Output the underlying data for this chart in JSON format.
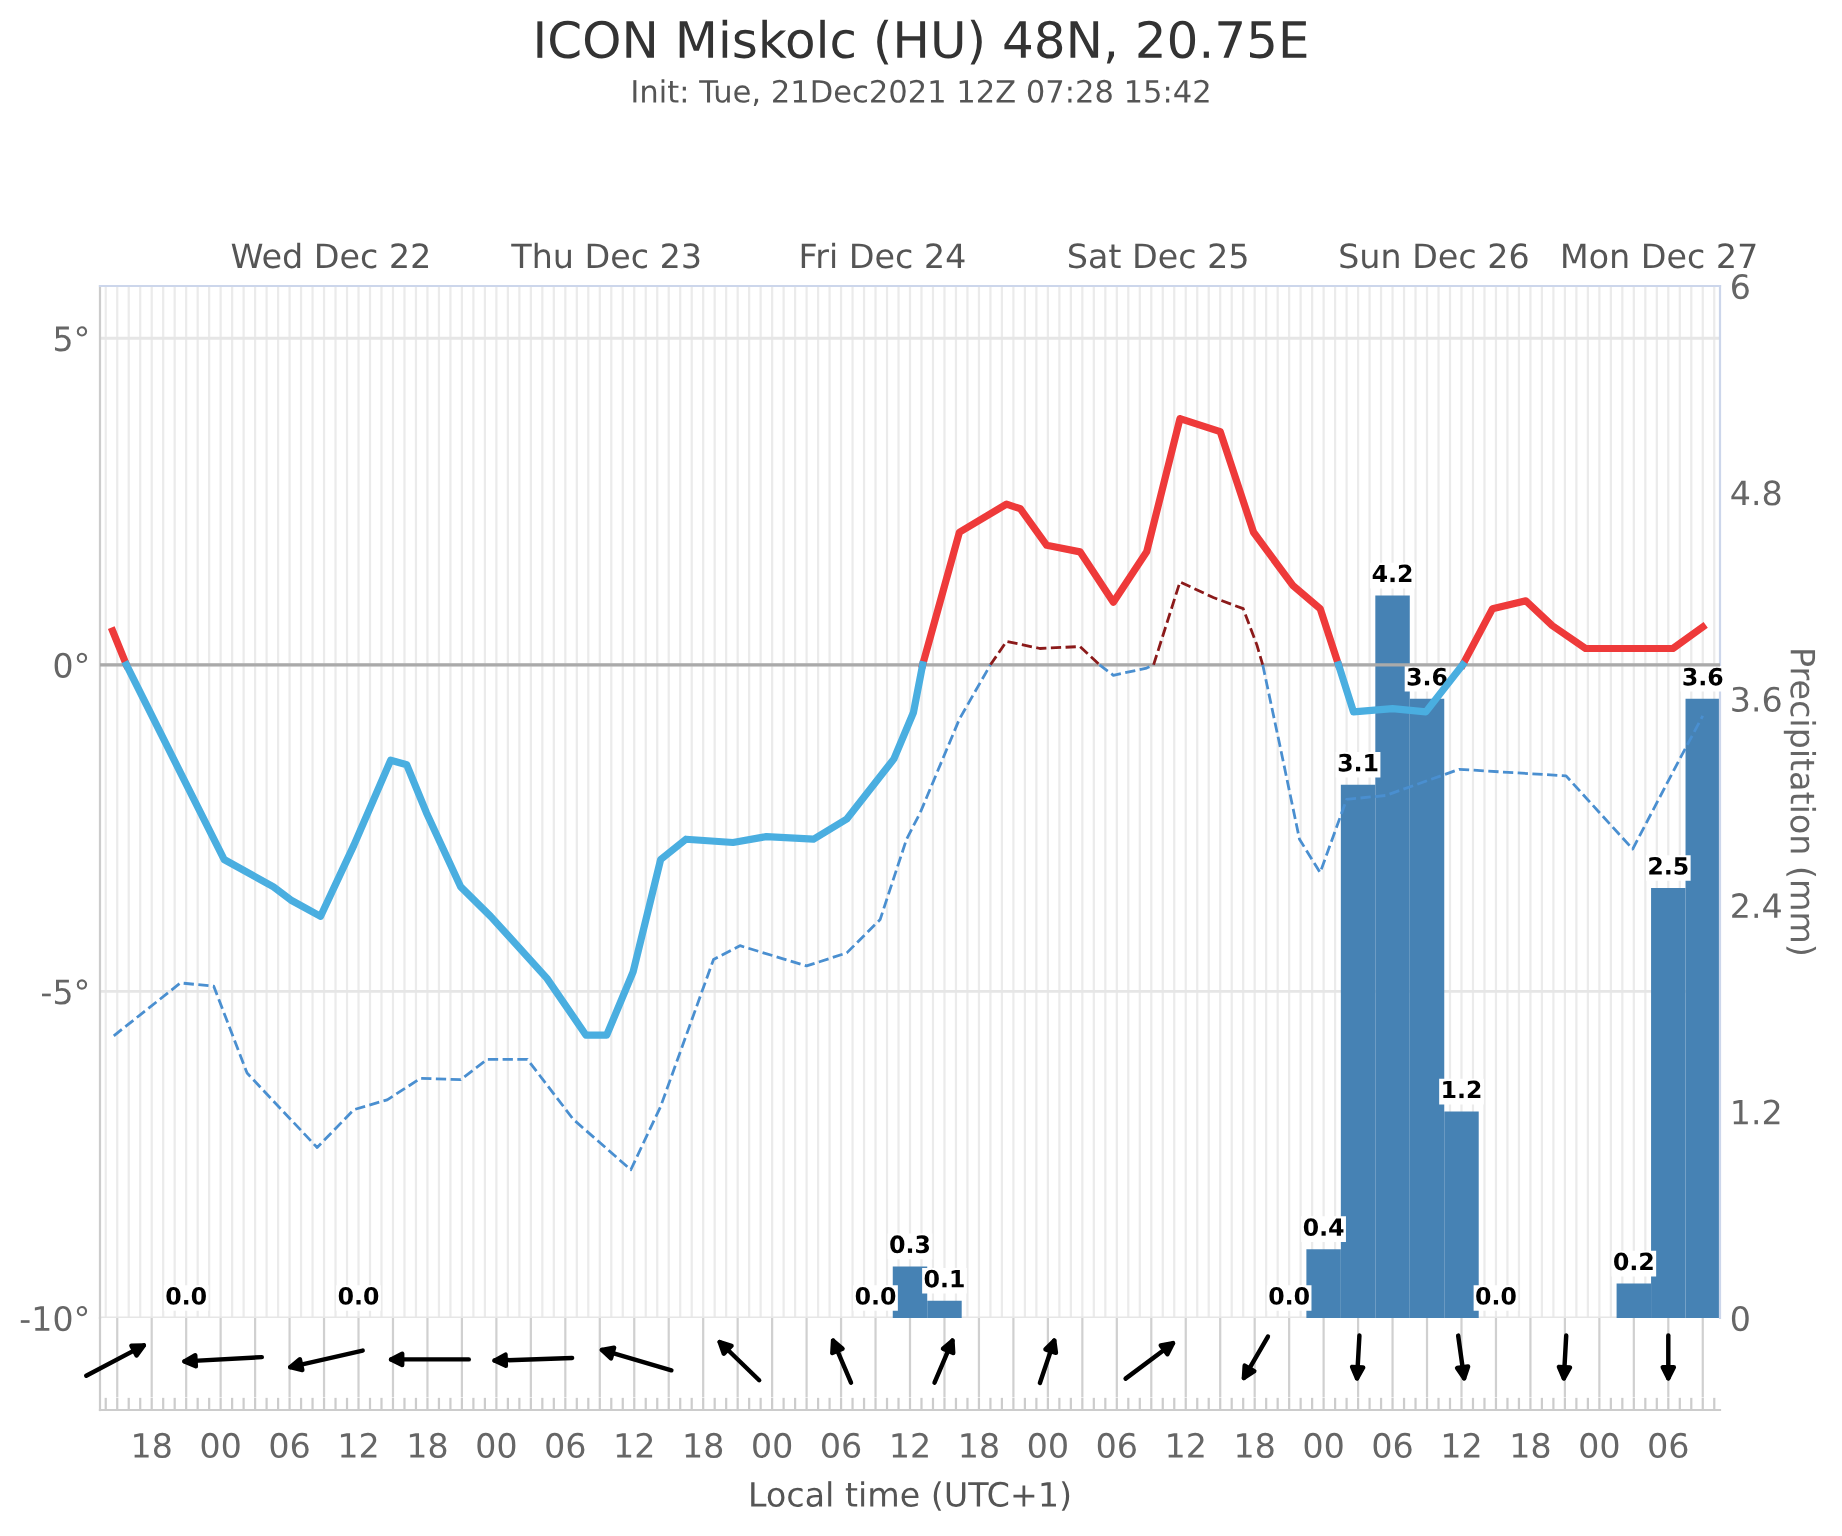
{
  "chart_data": {
    "type": "line",
    "title": "ICON Miskolc (HU) 48N, 20.75E",
    "subtitle": "Init: Tue, 21Dec2021 12Z 07:28 15:42",
    "xlabel": "Local time (UTC+1)",
    "y2label": "Precipitation (mm)",
    "x": [
      "2021-12-21T14:36",
      "2021-12-21T15:48",
      "2021-12-21T20:30",
      "2021-12-22T00:18",
      "2021-12-22T04:36",
      "2021-12-22T06:06",
      "2021-12-22T08:42",
      "2021-12-22T11:36",
      "2021-12-22T14:48",
      "2021-12-22T16:12",
      "2021-12-22T17:54",
      "2021-12-22T20:54",
      "2021-12-22T23:30",
      "2021-12-23T04:24",
      "2021-12-23T07:48",
      "2021-12-23T09:36",
      "2021-12-23T11:54",
      "2021-12-23T14:18",
      "2021-12-23T16:30",
      "2021-12-23T20:36",
      "2021-12-23T23:30",
      "2021-12-24T03:36",
      "2021-12-24T06:30",
      "2021-12-24T10:36",
      "2021-12-24T12:18",
      "2021-12-24T13:06",
      "2021-12-24T16:18",
      "2021-12-24T20:24",
      "2021-12-24T21:36",
      "2021-12-24T23:54",
      "2021-12-25T02:48",
      "2021-12-25T05:42",
      "2021-12-25T08:36",
      "2021-12-25T11:30",
      "2021-12-25T15:00",
      "2021-12-25T17:54",
      "2021-12-25T21:18",
      "2021-12-25T23:42",
      "2021-12-26T01:18",
      "2021-12-26T02:36",
      "2021-12-26T06:00",
      "2021-12-26T08:54",
      "2021-12-26T12:06",
      "2021-12-26T14:42",
      "2021-12-26T17:36",
      "2021-12-26T19:54",
      "2021-12-26T22:48",
      "2021-12-27T06:24",
      "2021-12-27T09:00"
    ],
    "series": [
      {
        "color": "#ee3a3a",
        "values": [
          0.52,
          0,
          null,
          null,
          null,
          null,
          null,
          null,
          null,
          null,
          null,
          null,
          null,
          null,
          null,
          null,
          null,
          null,
          null,
          null,
          null,
          null,
          null,
          null,
          null,
          0,
          2.03,
          2.46,
          2.39,
          1.83,
          1.73,
          0.96,
          1.73,
          3.77,
          3.57,
          2.03,
          1.22,
          0.86,
          0,
          null,
          null,
          null,
          0,
          0.86,
          0.98,
          0.6,
          0.25,
          0.25,
          0.58
        ]
      },
      {
        "color": "#4aaee0",
        "values": [
          null,
          0,
          -1.65,
          -2.98,
          -3.4,
          -3.6,
          -3.85,
          -2.76,
          -1.46,
          -1.53,
          -2.26,
          -3.4,
          -3.85,
          -4.8,
          -5.67,
          -5.67,
          -4.7,
          -2.98,
          -2.67,
          -2.72,
          -2.63,
          -2.67,
          -2.36,
          -1.44,
          -0.73,
          0,
          null,
          null,
          null,
          null,
          null,
          null,
          null,
          null,
          null,
          null,
          null,
          null,
          0,
          -0.72,
          -0.67,
          -0.72,
          0,
          null,
          null,
          null,
          null,
          null,
          null
        ]
      },
      {
        "line_style": "dashed",
        "color": "#8b1a1a",
        "x": [
          "2021-12-24T19:00",
          "2021-12-24T20:24",
          "2021-12-24T23:18",
          "2021-12-25T02:48",
          "2021-12-25T04:30",
          "2021-12-25T05:42",
          "2021-12-25T08:36",
          "2021-12-25T09:12",
          "2021-12-25T11:30",
          "2021-12-25T14:24",
          "2021-12-25T17:00",
          "2021-12-25T18:12",
          "2021-12-25T18:42"
        ],
        "values": [
          0,
          0.36,
          0.25,
          0.28,
          0,
          null,
          null,
          0,
          1.27,
          1.03,
          0.86,
          0.3,
          0
        ]
      },
      {
        "line_style": "dashed",
        "color": "#4a8fd0",
        "x": [
          "2021-12-21T14:42",
          "2021-12-21T20:30",
          "2021-12-21T23:24",
          "2021-12-22T02:18",
          "2021-12-22T08:24",
          "2021-12-22T11:36",
          "2021-12-22T14:30",
          "2021-12-22T17:24",
          "2021-12-22T20:54",
          "2021-12-22T23:12",
          "2021-12-23T02:42",
          "2021-12-23T06:42",
          "2021-12-23T11:42",
          "2021-12-23T14:18",
          "2021-12-23T18:54",
          "2021-12-23T21:12",
          "2021-12-24T03:00",
          "2021-12-24T06:30",
          "2021-12-24T09:24",
          "2021-12-24T11:42",
          "2021-12-24T12:54",
          "2021-12-24T16:18",
          "2021-12-24T19:00",
          "2021-12-24T20:24",
          "2021-12-25T04:30",
          "2021-12-25T05:42",
          "2021-12-25T08:36",
          "2021-12-25T09:12",
          "2021-12-25T11:30",
          "2021-12-25T18:42",
          "2021-12-25T20:12",
          "2021-12-25T21:54",
          "2021-12-25T23:42",
          "2021-12-26T02:00",
          "2021-12-26T05:24",
          "2021-12-26T11:48",
          "2021-12-26T21:06",
          "2021-12-27T00:00",
          "2021-12-27T02:54",
          "2021-12-27T07:00",
          "2021-12-27T09:00"
        ],
        "values": [
          -5.68,
          -4.87,
          -4.92,
          -6.25,
          -7.39,
          -6.81,
          -6.66,
          -6.33,
          -6.35,
          -6.04,
          -6.04,
          -6.96,
          -7.73,
          -6.76,
          -4.51,
          -4.3,
          -4.61,
          -4.41,
          -3.9,
          -2.67,
          -2.26,
          -0.83,
          0,
          null,
          0,
          -0.16,
          -0.05,
          0,
          null,
          0,
          -1.24,
          -2.67,
          -3.18,
          -2.06,
          -2.0,
          -1.6,
          -1.7,
          -2.26,
          -2.82,
          -1.44,
          -0.78
        ]
      },
      {
        "type": "bar",
        "axis": "y2",
        "color": "#4682b4",
        "value_labels": [
          "0.0",
          "0.0",
          "0.0",
          "0.3",
          "0.1",
          "0.0",
          "0.4",
          "3.1",
          "4.2",
          "3.6",
          "1.2",
          "0.0",
          "0.2",
          "2.5",
          "3.6"
        ],
        "x": [
          "2021-12-21T21:00",
          "2021-12-22T12:00",
          "2021-12-24T09:00",
          "2021-12-24T12:00",
          "2021-12-24T15:00",
          "2021-12-25T21:00",
          "2021-12-26T00:00",
          "2021-12-26T03:00",
          "2021-12-26T06:00",
          "2021-12-26T09:00",
          "2021-12-26T12:00",
          "2021-12-26T15:00",
          "2021-12-27T03:00",
          "2021-12-27T06:00",
          "2021-12-27T09:00"
        ],
        "values": [
          0.0,
          0.0,
          0.0,
          0.3,
          0.1,
          0.0,
          0.4,
          3.1,
          4.2,
          3.6,
          1.2,
          0.0,
          0.2,
          2.5,
          3.6
        ]
      }
    ],
    "xlim": [
      "2021-12-21T13:30",
      "2021-12-27T10:30"
    ],
    "xticks": [
      {
        "value": "2021-12-21T18:00",
        "label": "18"
      },
      {
        "value": "2021-12-22T00:00",
        "label": "00"
      },
      {
        "value": "2021-12-22T06:00",
        "label": "06"
      },
      {
        "value": "2021-12-22T12:00",
        "label": "12"
      },
      {
        "value": "2021-12-22T18:00",
        "label": "18"
      },
      {
        "value": "2021-12-23T00:00",
        "label": "00"
      },
      {
        "value": "2021-12-23T06:00",
        "label": "06"
      },
      {
        "value": "2021-12-23T12:00",
        "label": "12"
      },
      {
        "value": "2021-12-23T18:00",
        "label": "18"
      },
      {
        "value": "2021-12-24T00:00",
        "label": "00"
      },
      {
        "value": "2021-12-24T06:00",
        "label": "06"
      },
      {
        "value": "2021-12-24T12:00",
        "label": "12"
      },
      {
        "value": "2021-12-24T18:00",
        "label": "18"
      },
      {
        "value": "2021-12-25T00:00",
        "label": "00"
      },
      {
        "value": "2021-12-25T06:00",
        "label": "06"
      },
      {
        "value": "2021-12-25T12:00",
        "label": "12"
      },
      {
        "value": "2021-12-25T18:00",
        "label": "18"
      },
      {
        "value": "2021-12-26T00:00",
        "label": "00"
      },
      {
        "value": "2021-12-26T06:00",
        "label": "06"
      },
      {
        "value": "2021-12-26T12:00",
        "label": "12"
      },
      {
        "value": "2021-12-26T18:00",
        "label": "18"
      },
      {
        "value": "2021-12-27T00:00",
        "label": "00"
      },
      {
        "value": "2021-12-27T06:00",
        "label": "06"
      }
    ],
    "x2lim": [
      "2021-12-21T13:30",
      "2021-12-27T10:30"
    ],
    "x2ticks": [
      {
        "value": "2021-12-22T09:36",
        "label": "Wed Dec 22"
      },
      {
        "value": "2021-12-23T09:36",
        "label": "Thu Dec 23"
      },
      {
        "value": "2021-12-24T09:36",
        "label": "Fri Dec 24"
      },
      {
        "value": "2021-12-25T09:36",
        "label": "Sat Dec 25"
      },
      {
        "value": "2021-12-26T09:36",
        "label": "Sun Dec 26"
      },
      {
        "value": "2021-12-27T05:12",
        "label": "Mon Dec 27"
      }
    ],
    "ylim": [
      -10,
      5.8
    ],
    "yticks": [
      {
        "value": -10,
        "label": "-10°"
      },
      {
        "value": -5,
        "label": "-5°"
      },
      {
        "value": 0,
        "label": "0°"
      },
      {
        "value": 5,
        "label": "5°"
      }
    ],
    "y2lim": [
      0,
      6
    ],
    "y2ticks": [
      0,
      1.2,
      2.4,
      3.6,
      4.8,
      6
    ],
    "ref_lines": [
      {
        "axis": "y",
        "value": 0,
        "color": "#aaaaaa"
      }
    ],
    "grid": true
  }
}
